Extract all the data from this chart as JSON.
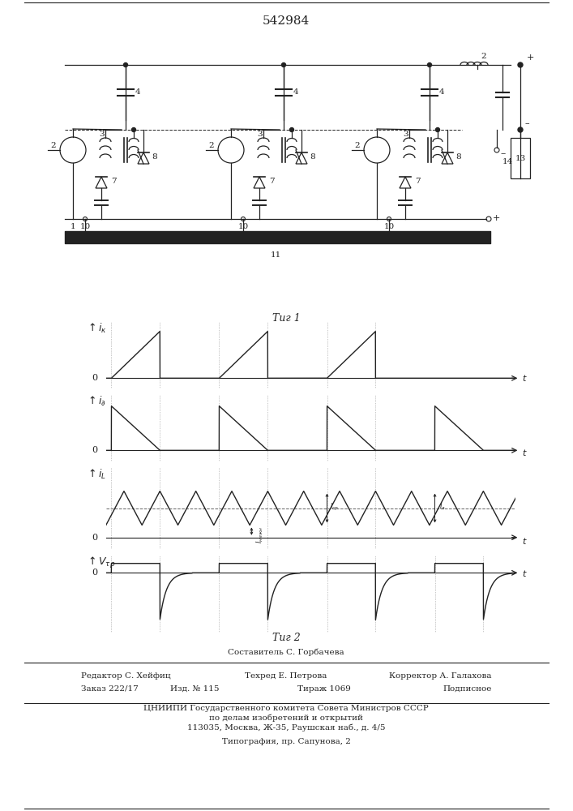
{
  "title_number": "542984",
  "fig1_caption": "Τиг 1",
  "fig2_caption": "Τиг 2",
  "footer_line1": "Составитель С. Горбачева",
  "footer_line2_left": "Редактор С. Хейфиц",
  "footer_line2_mid": "Техред Е. Петрова",
  "footer_line2_right": "Корректор А. Галахова",
  "footer_line3_left": "Заказ 222/17",
  "footer_line3_mid1": "Изд. № 115",
  "footer_line3_mid2": "Тираж 1069",
  "footer_line3_right": "Подписное",
  "footer_line4": "ЦНИИПИ Государственного комитета Совета Министров СССР",
  "footer_line5": "по делам изобретений и открытий",
  "footer_line6": "113035, Москва, Ж-35, Раушская наб., д. 4/5",
  "footer_line7": "Типография, пр. Сапунова, 2",
  "bg_color": "#ffffff",
  "line_color": "#222222"
}
